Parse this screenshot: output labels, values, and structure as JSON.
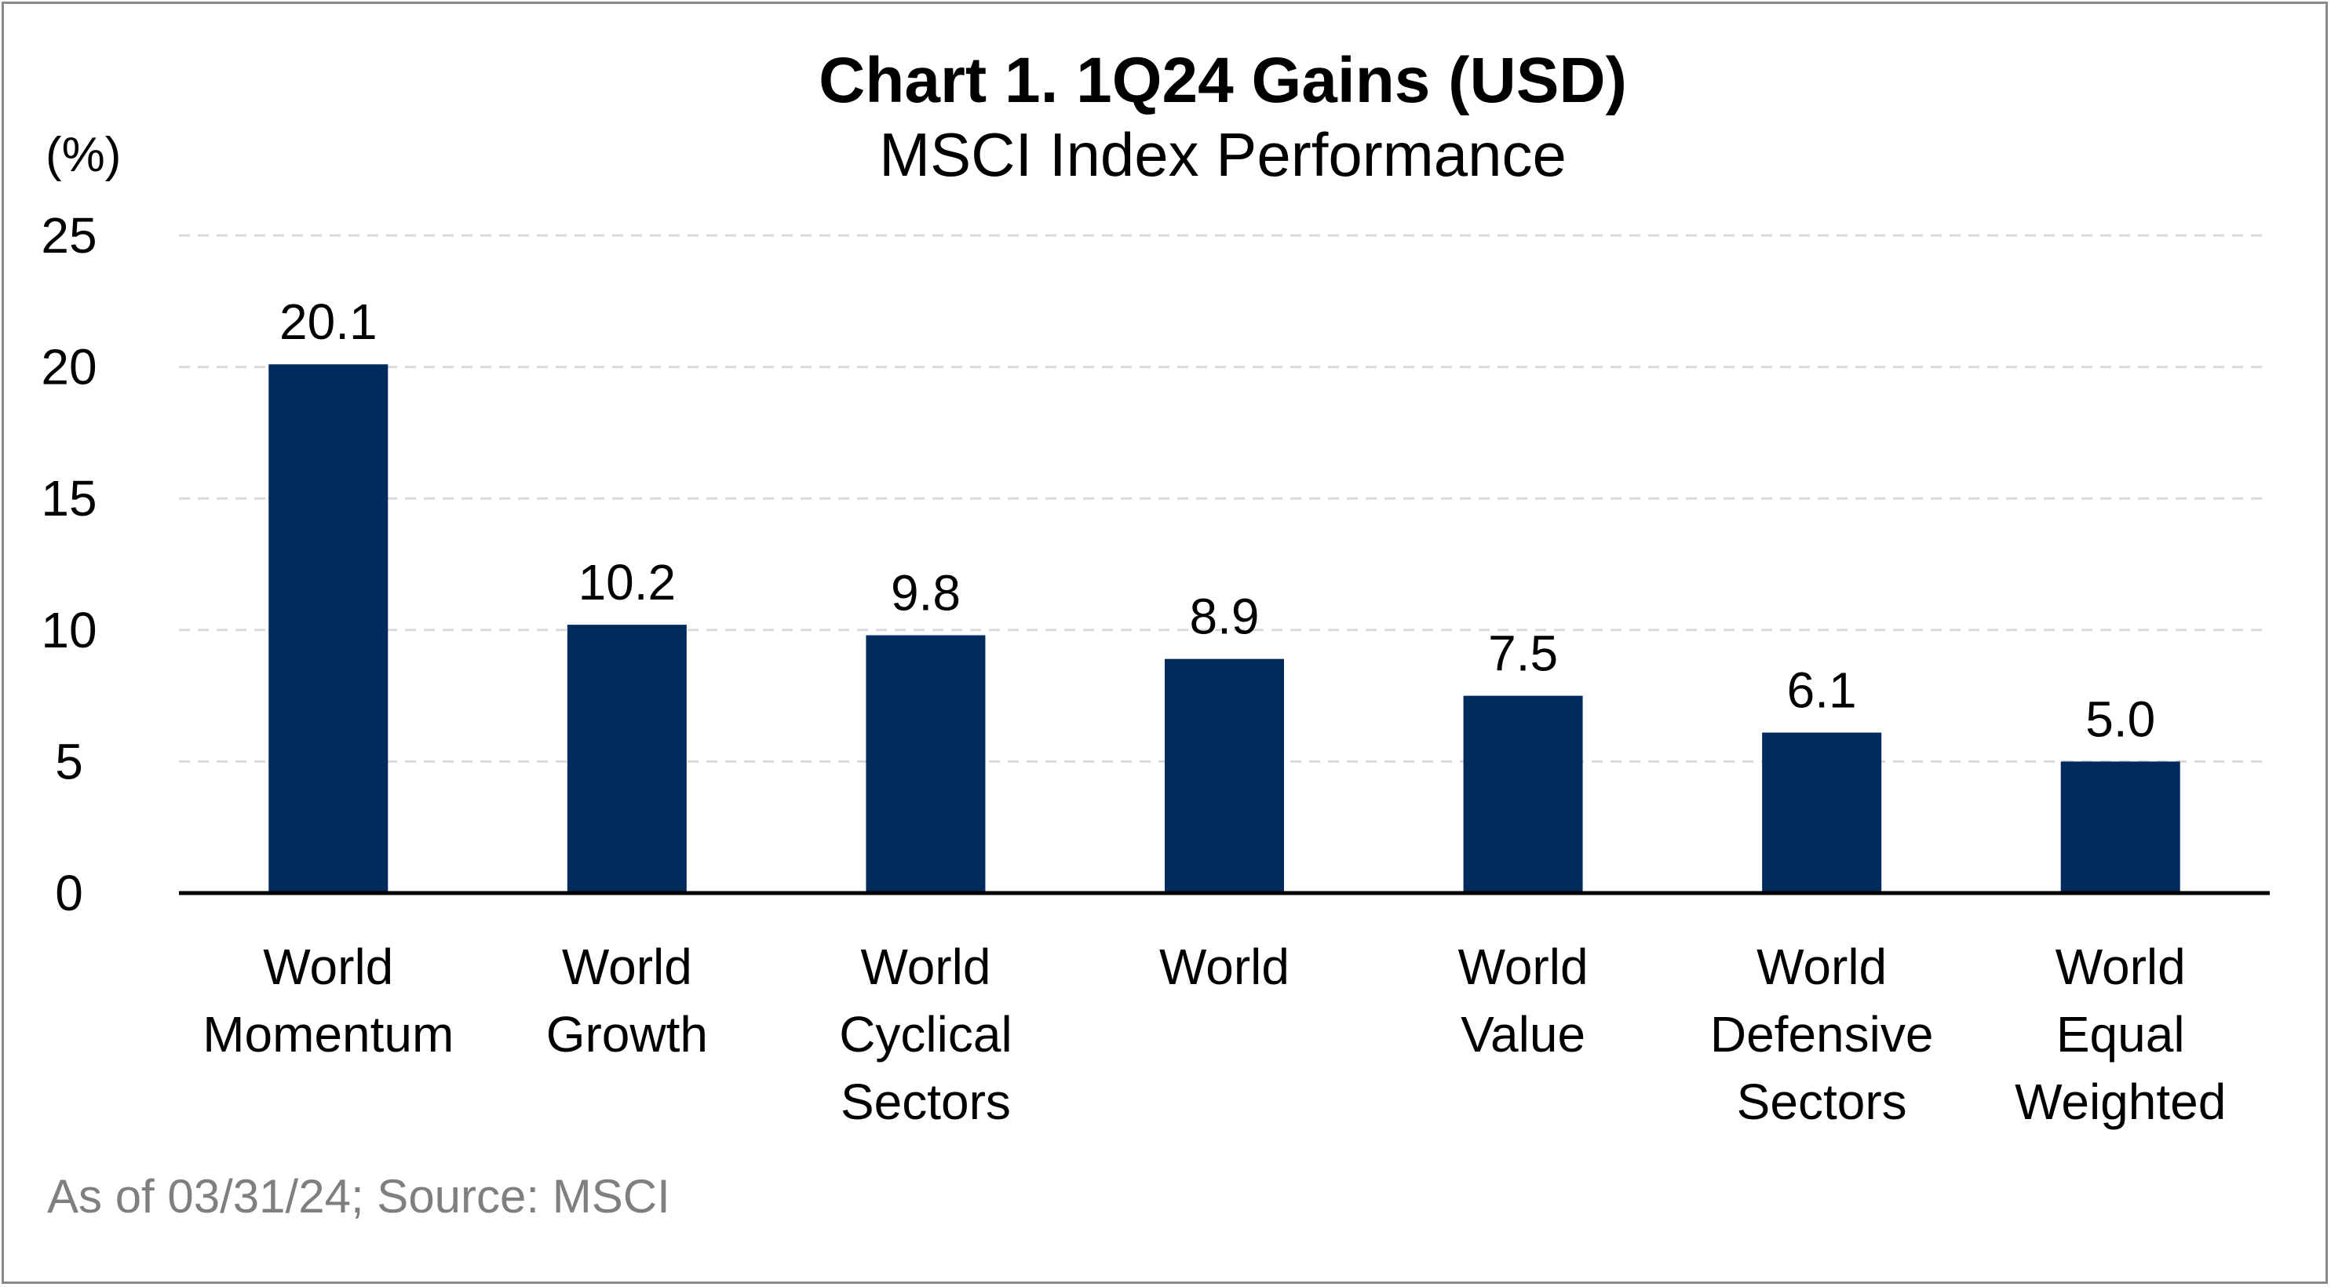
{
  "chart_data": {
    "type": "bar",
    "title": "Chart 1. 1Q24 Gains (USD)",
    "subtitle": "MSCI Index Performance",
    "unit_label": "(%)",
    "categories": [
      [
        "World",
        "Momentum"
      ],
      [
        "World",
        "Growth"
      ],
      [
        "World",
        "Cyclical",
        "Sectors"
      ],
      [
        "World"
      ],
      [
        "World",
        "Value"
      ],
      [
        "World",
        "Defensive",
        "Sectors"
      ],
      [
        "World",
        "Equal",
        "Weighted"
      ]
    ],
    "values": [
      20.1,
      10.2,
      9.8,
      8.9,
      7.5,
      6.1,
      5.0
    ],
    "data_labels": [
      "20.1",
      "10.2",
      "9.8",
      "8.9",
      "7.5",
      "6.1",
      "5.0"
    ],
    "ylim": [
      0,
      25
    ],
    "yticks": [
      0,
      5,
      10,
      15,
      20,
      25
    ],
    "grid": true,
    "legend": "none",
    "bar_color": "#002b5c",
    "grid_color": "#d9d9d9",
    "source": "As of 03/31/24; Source: MSCI"
  }
}
